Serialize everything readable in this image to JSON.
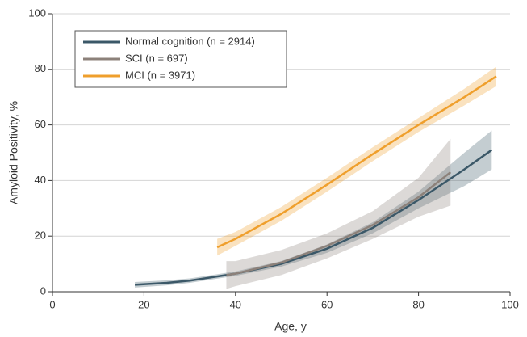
{
  "chart_data": {
    "type": "line",
    "xlabel": "Age, y",
    "ylabel": "Amyloid Positivity, %",
    "xlim": [
      0,
      100
    ],
    "xticks": [
      0,
      20,
      40,
      60,
      80,
      100
    ],
    "ylim": [
      0,
      100
    ],
    "yticks": [
      0,
      20,
      40,
      60,
      80,
      100
    ],
    "grid": true,
    "legend": "upper left",
    "series": [
      {
        "name": "Normal cognition (n = 2914)",
        "color": "#3b5868",
        "x": [
          18,
          25,
          30,
          40,
          50,
          60,
          70,
          80,
          90,
          96
        ],
        "values": [
          2.5,
          3.2,
          4,
          6.5,
          10,
          15.5,
          23,
          33,
          44,
          51
        ],
        "lower": [
          1.5,
          2.3,
          3.2,
          5.7,
          9,
          14,
          21,
          30,
          38,
          44
        ],
        "upper": [
          3.5,
          4.1,
          4.8,
          7.3,
          11,
          17,
          25,
          36,
          50,
          58
        ]
      },
      {
        "name": "SCI (n = 697)",
        "color": "#8c817a",
        "x": [
          38,
          40,
          50,
          60,
          70,
          80,
          87
        ],
        "values": [
          6,
          6.5,
          10.5,
          16.5,
          24,
          34,
          43
        ],
        "lower": [
          1,
          2,
          6,
          12,
          19,
          27,
          31
        ],
        "upper": [
          11,
          11,
          15,
          21,
          29,
          41,
          55
        ]
      },
      {
        "name": "MCI (n = 3971)",
        "color": "#ef9f2c",
        "x": [
          36,
          40,
          50,
          60,
          70,
          80,
          90,
          97
        ],
        "values": [
          16,
          19,
          28,
          38.5,
          49.5,
          60,
          70,
          77.5
        ],
        "lower": [
          13,
          16.5,
          25.5,
          36,
          47,
          57.5,
          67,
          74
        ],
        "upper": [
          19,
          21.5,
          30.5,
          41,
          52,
          62.5,
          73,
          81
        ]
      }
    ]
  }
}
